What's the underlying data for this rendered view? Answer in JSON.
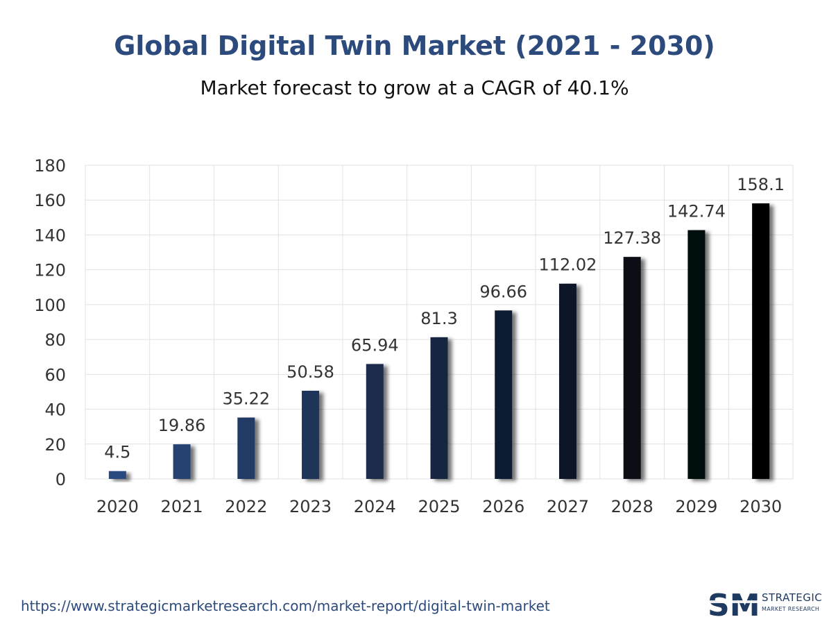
{
  "header": {
    "title": "Global Digital Twin Market (2021 - 2030)",
    "subtitle": "Market forecast to grow at a CAGR of 40.1%"
  },
  "footer": {
    "url": "https://www.strategicmarketresearch.com/market-report/digital-twin-market"
  },
  "logo": {
    "mark": "SM",
    "line1": "STRATEGIC",
    "line2": "MARKET RESEARCH"
  },
  "colors": {
    "title": "#2c4a7c",
    "bar_start": "#2b4a7e",
    "bar_end": "#000000",
    "grid": "#e2e2e2",
    "tick_text": "#333333"
  },
  "chart_data": {
    "type": "bar",
    "categories": [
      "2020",
      "2021",
      "2022",
      "2023",
      "2024",
      "2025",
      "2026",
      "2027",
      "2028",
      "2029",
      "2030"
    ],
    "values": [
      4.5,
      19.86,
      35.22,
      50.58,
      65.94,
      81.3,
      96.66,
      112.02,
      127.38,
      142.74,
      158.1
    ],
    "value_labels": [
      "4.5",
      "19.86",
      "35.22",
      "50.58",
      "65.94",
      "81.3",
      "96.66",
      "112.02",
      "127.38",
      "142.74",
      "158.1"
    ],
    "y_ticks": [
      "0",
      "20",
      "40",
      "60",
      "80",
      "100",
      "120",
      "140",
      "160",
      "180"
    ],
    "ylim": [
      0,
      180
    ],
    "xlabel": "",
    "ylabel": "",
    "grid": true,
    "legend": "none"
  }
}
